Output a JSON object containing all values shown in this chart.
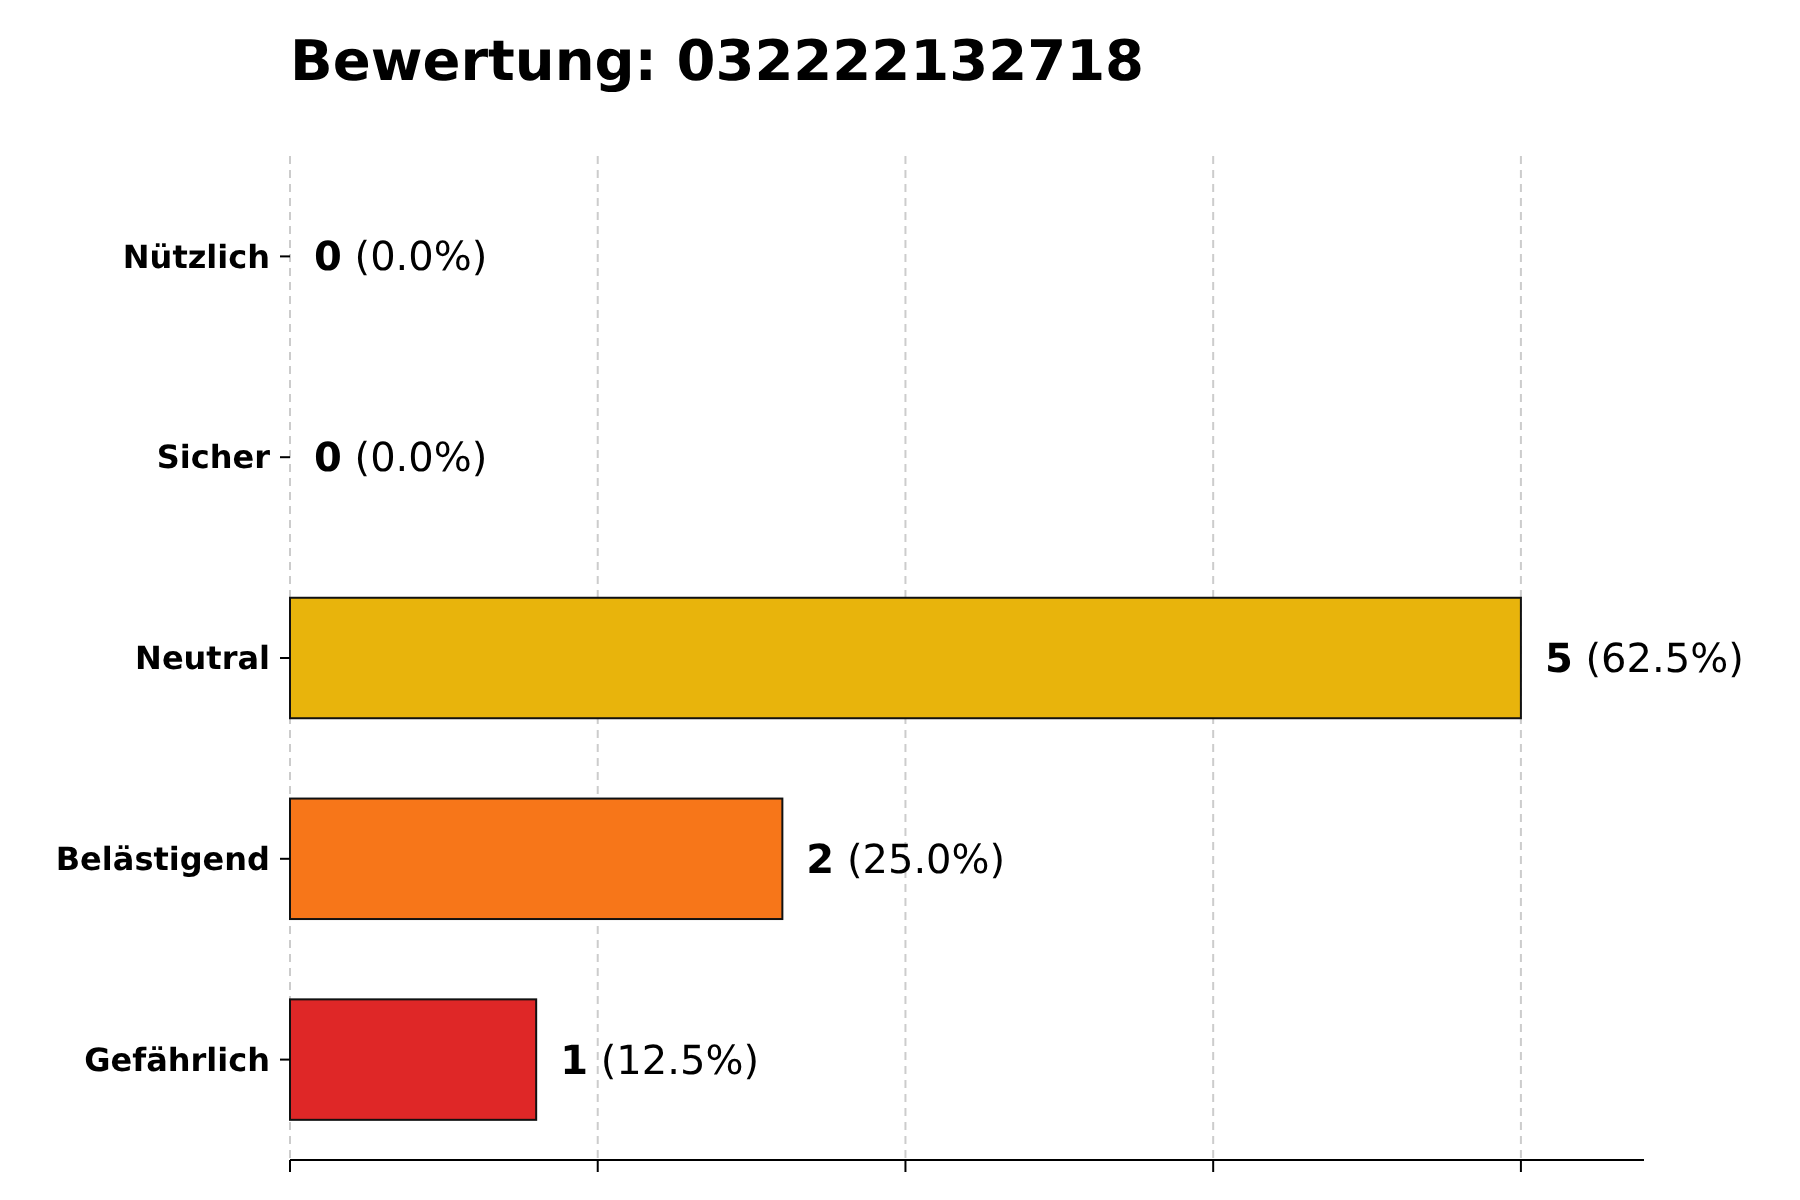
{
  "chart_data": {
    "type": "bar",
    "orientation": "horizontal",
    "title": "Bewertung: 032222132718",
    "categories": [
      "Nützlich",
      "Sicher",
      "Neutral",
      "Belästigend",
      "Gefährlich"
    ],
    "values": [
      0,
      0,
      5,
      2,
      1
    ],
    "colors": [
      "#2ca02c",
      "#1f77b4",
      "#e8b40c",
      "#f77619",
      "#df2727"
    ],
    "value_labels": [
      "0 (0.0%)",
      "0 (0.0%)",
      "5 (62.5%)",
      "2 (25.0%)",
      "1 (12.5%)"
    ],
    "xlim": [
      0,
      5.5
    ],
    "xticks": [
      {
        "value": 0,
        "label": null
      },
      {
        "value": 1.25,
        "label": null
      },
      {
        "value": 2.5,
        "label": null
      },
      {
        "value": 3.75,
        "label": null
      },
      {
        "value": 5,
        "label": null
      }
    ],
    "grid": "x",
    "tick_labels": "y"
  }
}
